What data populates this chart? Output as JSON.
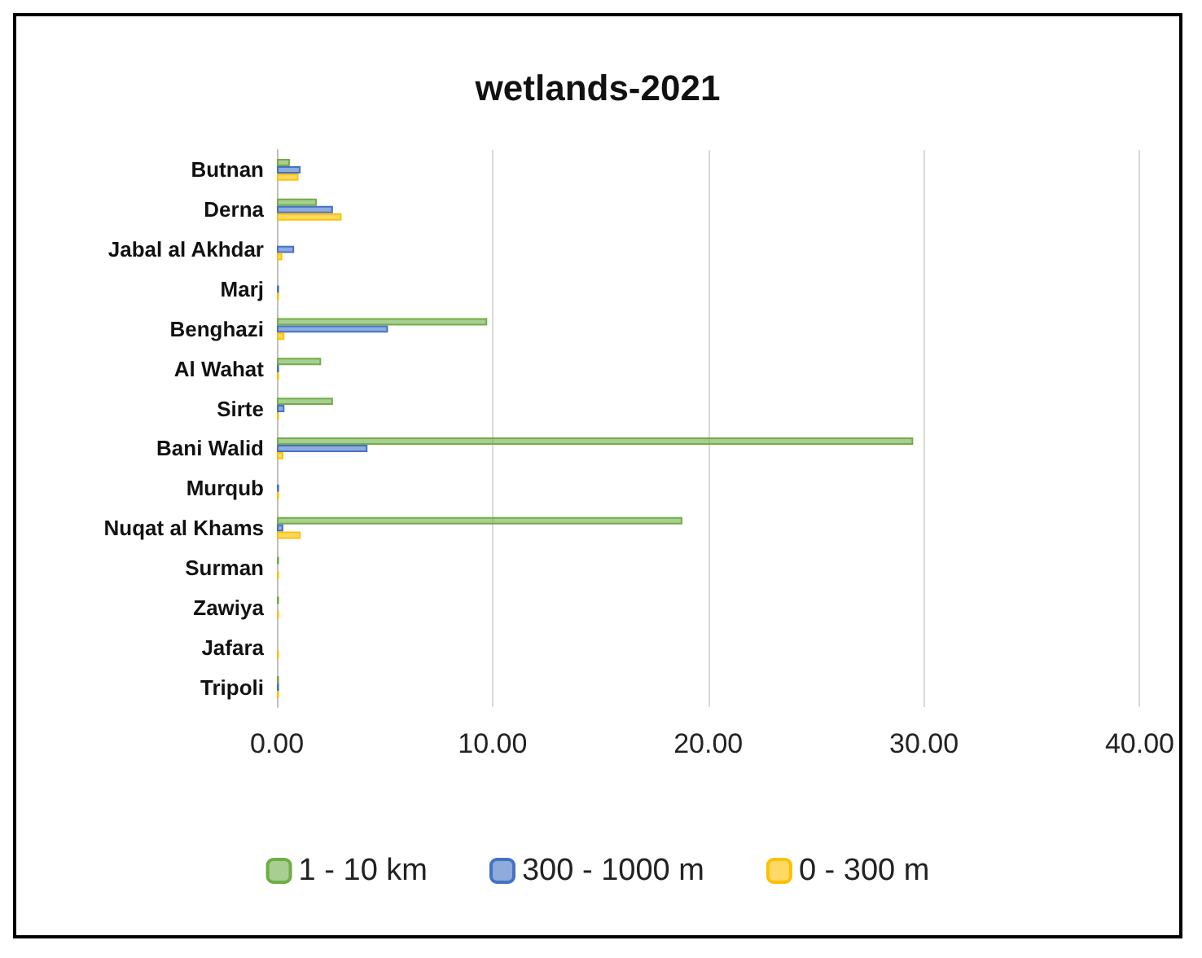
{
  "chart_data": {
    "type": "bar",
    "orientation": "horizontal",
    "title": "wetlands-2021",
    "categories": [
      "Butnan",
      "Derna",
      "Jabal al Akhdar",
      "Marj",
      "Benghazi",
      "Al Wahat",
      "Sirte",
      "Bani Walid",
      "Murqub",
      "Nuqat al Khams",
      "Surman",
      "Zawiya",
      "Jafara",
      "Tripoli"
    ],
    "series": [
      {
        "name": "1 - 10 km",
        "color": "#70ad47",
        "values": [
          0.6,
          1.85,
          0,
          0,
          9.75,
          2.05,
          2.6,
          29.5,
          0,
          18.8,
          0.1,
          0.1,
          0,
          0.1
        ]
      },
      {
        "name": "300 - 1000 m",
        "color": "#4472c4",
        "values": [
          1.1,
          2.6,
          0.8,
          0.1,
          5.15,
          0.1,
          0.35,
          4.2,
          0.1,
          0.3,
          0,
          0,
          0,
          0.1
        ]
      },
      {
        "name": "0 - 300 m",
        "color": "#ffc000",
        "values": [
          1.0,
          3.0,
          0.25,
          0.1,
          0.35,
          0.1,
          0.1,
          0.3,
          0.1,
          1.1,
          0.1,
          0.1,
          0.1,
          0.1
        ]
      }
    ],
    "xlim": [
      0,
      40
    ],
    "xticks": [
      {
        "value": 0,
        "label": "0.00"
      },
      {
        "value": 10,
        "label": "10.00"
      },
      {
        "value": 20,
        "label": "20.00"
      },
      {
        "value": 30,
        "label": "30.00"
      },
      {
        "value": 40,
        "label": "40.00"
      }
    ],
    "grid": "x",
    "legend": "bottom"
  }
}
